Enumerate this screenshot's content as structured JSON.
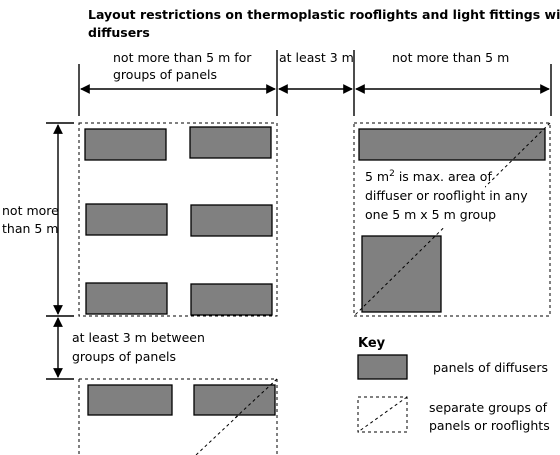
{
  "title_line1": "Layout restrictions on thermoplastic rooflights and light fittings with",
  "title_line2": "diffusers",
  "dim_top_left_line1": "not more than 5 m  for",
  "dim_top_left_line2": "groups of panels",
  "dim_top_middle": "at least 3 m",
  "dim_top_right": "not more than 5 m",
  "dim_left_upper_line1": "not more",
  "dim_left_upper_line2": "than 5 m",
  "dim_left_lower_line1": "at least 3 m between",
  "dim_left_lower_line2": "groups of panels",
  "area_note_prefix": "5 m",
  "area_note_sup": "2",
  "area_note_line1_rest": " is max. area of",
  "area_note_line2": "diffuser or rooflight in any",
  "area_note_line3": "one 5 m x 5 m group",
  "key": {
    "heading": "Key",
    "panels_label": "panels of diffusers",
    "groups_label_line1": "separate groups of",
    "groups_label_line2": "panels or rooflights"
  },
  "colors": {
    "panel_fill": "#808080",
    "line": "#000000"
  }
}
